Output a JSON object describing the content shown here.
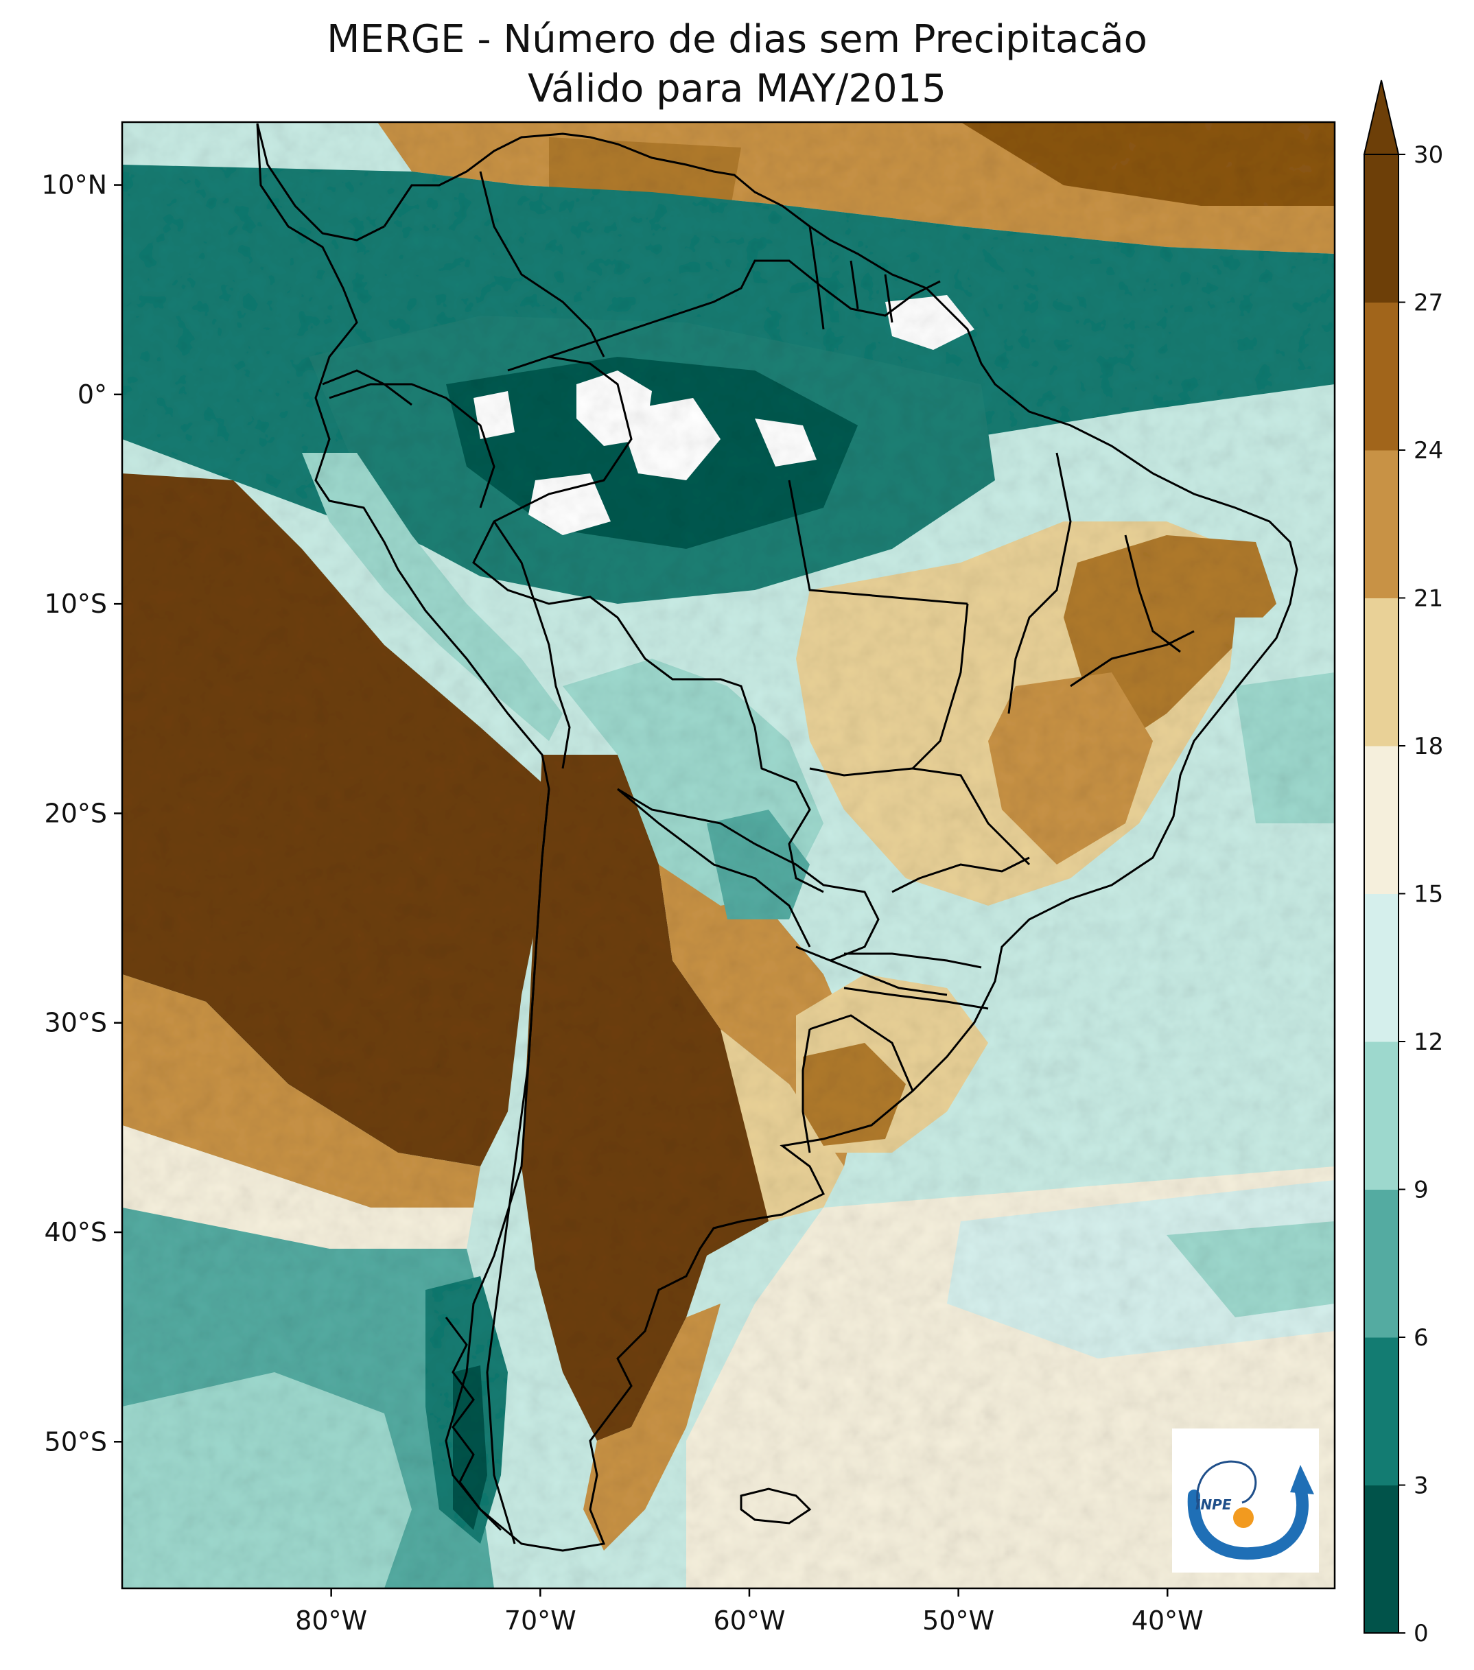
{
  "title": {
    "line1": "MERGE - Número de dias sem Precipitacão",
    "line2": "Válido para MAY/2015"
  },
  "map": {
    "lon_range": [
      -90,
      -32
    ],
    "lat_range": [
      -57,
      13
    ],
    "lat_ticks": [
      {
        "value": 10,
        "label": "10°N"
      },
      {
        "value": 0,
        "label": "0°"
      },
      {
        "value": -10,
        "label": "10°S"
      },
      {
        "value": -20,
        "label": "20°S"
      },
      {
        "value": -30,
        "label": "30°S"
      },
      {
        "value": -40,
        "label": "40°S"
      },
      {
        "value": -50,
        "label": "50°S"
      }
    ],
    "lon_ticks": [
      {
        "value": -80,
        "label": "80°W"
      },
      {
        "value": -70,
        "label": "70°W"
      },
      {
        "value": -60,
        "label": "60°W"
      },
      {
        "value": -50,
        "label": "50°W"
      },
      {
        "value": -40,
        "label": "40°W"
      }
    ]
  },
  "colorbar": {
    "levels": [
      "0",
      "3",
      "6",
      "9",
      "12",
      "15",
      "18",
      "21",
      "24",
      "27",
      "30"
    ],
    "colors": [
      "#01534a",
      "#137c72",
      "#54aba1",
      "#9dd8cd",
      "#d5efec",
      "#f5efdc",
      "#e9d197",
      "#c89245",
      "#a1651b",
      "#6d3f08"
    ],
    "extend_color": "#6d3f08"
  },
  "logo": {
    "text": "INPE"
  }
}
